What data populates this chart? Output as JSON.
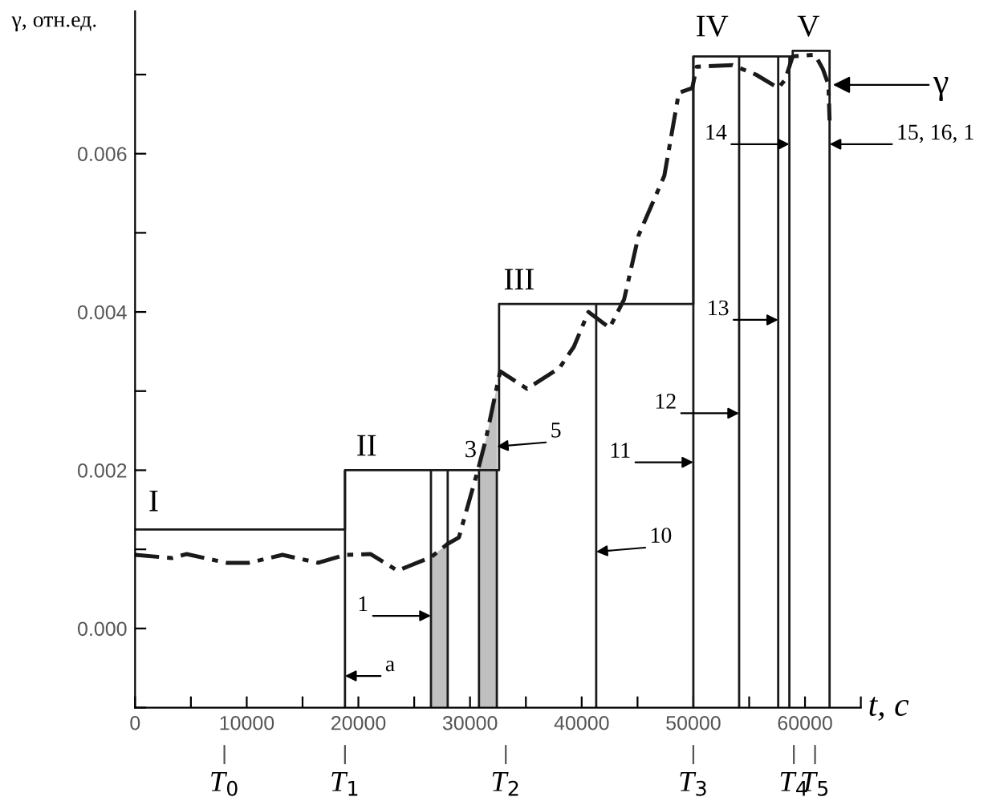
{
  "chart_data": {
    "type": "line",
    "xlabel": "t, c",
    "ylabel": "γ, отн.ед.",
    "xlim": [
      0,
      65000
    ],
    "ylim": [
      -0.001,
      0.0078
    ],
    "xticks": [
      0,
      {
        "value": 5000,
        "label": null
      },
      10000,
      {
        "value": 15000,
        "label": null
      },
      20000,
      {
        "value": 25000,
        "label": null
      },
      30000,
      {
        "value": 35000,
        "label": null
      },
      40000,
      {
        "value": 45000,
        "label": null
      },
      50000,
      {
        "value": 55000,
        "label": null
      },
      60000,
      {
        "value": 65000,
        "label": null
      }
    ],
    "yticks": [
      {
        "value": -0.001,
        "label": null
      },
      {
        "value": 0,
        "label": "0.000"
      },
      {
        "value": 0.001,
        "label": null
      },
      {
        "value": 0.002,
        "label": "0.002"
      },
      {
        "value": 0.003,
        "label": null
      },
      {
        "value": 0.004,
        "label": "0.004"
      },
      {
        "value": 0.005,
        "label": null
      },
      {
        "value": 0.006,
        "label": "0.006"
      },
      {
        "value": 0.007,
        "label": null
      }
    ],
    "series": [
      {
        "type": "line",
        "color": "#1a1a1a",
        "line_style": "dashed",
        "x": [
          0,
          3300,
          4600,
          8200,
          10200,
          13200,
          16400,
          18800,
          21100,
          23500,
          26500,
          28000,
          29000,
          30700,
          31400,
          32700,
          35100,
          38000,
          39300,
          40600,
          42500,
          43800,
          45100,
          47400,
          48700,
          49900,
          50300,
          53500,
          55600,
          57600,
          58200,
          58900,
          60900,
          61600,
          62100,
          62200
        ],
        "values": [
          0.00093,
          0.00089,
          0.00094,
          0.00083,
          0.00083,
          0.00093,
          0.00083,
          0.00093,
          0.00094,
          0.00073,
          0.0009,
          0.00107,
          0.00115,
          0.002,
          0.00238,
          0.00325,
          0.00303,
          0.00329,
          0.00356,
          0.004,
          0.0038,
          0.00416,
          0.00497,
          0.00572,
          0.00677,
          0.00683,
          0.0071,
          0.00712,
          0.007,
          0.00683,
          0.00693,
          0.00723,
          0.00725,
          0.00707,
          0.00687,
          0.00642
        ]
      },
      {
        "type": "step",
        "color": "#1a1a1a",
        "line_style": "solid",
        "x": [
          0,
          18800,
          32600,
          50000,
          58900,
          62200
        ],
        "values": [
          0.00125,
          0.002,
          0.0041,
          0.00723,
          0.0073,
          0.0073
        ]
      }
    ],
    "ref_lines": [
      {
        "axis": "x",
        "value": 18800,
        "color": "#1a1a1a"
      },
      {
        "axis": "x",
        "value": 26500,
        "color": "#1a1a1a"
      },
      {
        "axis": "x",
        "value": 28000,
        "color": "#1a1a1a"
      },
      {
        "axis": "x",
        "value": 30800,
        "color": "#1a1a1a"
      },
      {
        "axis": "x",
        "value": 32400,
        "color": "#1a1a1a"
      },
      {
        "axis": "x",
        "value": 41300,
        "color": "#1a1a1a"
      },
      {
        "axis": "x",
        "value": 50000,
        "color": "#1a1a1a"
      },
      {
        "axis": "x",
        "value": 54100,
        "color": "#1a1a1a"
      },
      {
        "axis": "x",
        "value": 57600,
        "color": "#1a1a1a"
      },
      {
        "axis": "x",
        "value": 58600,
        "color": "#1a1a1a"
      },
      {
        "axis": "x",
        "value": 62200,
        "color": "#1a1a1a"
      }
    ],
    "bands": [
      {
        "axis": "x",
        "from": 26500,
        "to": 28000,
        "color": "#c0c0c0"
      },
      {
        "axis": "x",
        "from": 30800,
        "to": 32400,
        "color": "#c0c0c0"
      }
    ],
    "annotations": [
      "I",
      "II",
      "III",
      "IV",
      "V",
      {
        "text": "a",
        "x": 18800,
        "y": -0.0006
      },
      {
        "text": "1",
        "x": 26500,
        "y": 0.00016
      },
      {
        "text": "3",
        "x": 30600,
        "y": 0.0021
      },
      {
        "text": "5",
        "x": 32400,
        "y": 0.0023
      },
      {
        "text": "10",
        "x": 41300,
        "y": 0.00097
      },
      {
        "text": "11",
        "x": 50000,
        "y": 0.0021
      },
      {
        "text": "12",
        "x": 54100,
        "y": 0.00272
      },
      {
        "text": "13",
        "x": 57600,
        "y": 0.0039
      },
      {
        "text": "14",
        "x": 58600,
        "y": 0.00612
      },
      {
        "text": "15, 16, 1",
        "x": 62200,
        "y": 0.00612
      },
      {
        "text": "γ",
        "x": 62500,
        "y": 0.00687
      },
      "T$_{0}$",
      "T$_{1}$",
      "T$_{2}$",
      "T$_{3}$",
      "T$_{4}$",
      "T$_{5}$"
    ],
    "grid": false,
    "legend": false
  }
}
